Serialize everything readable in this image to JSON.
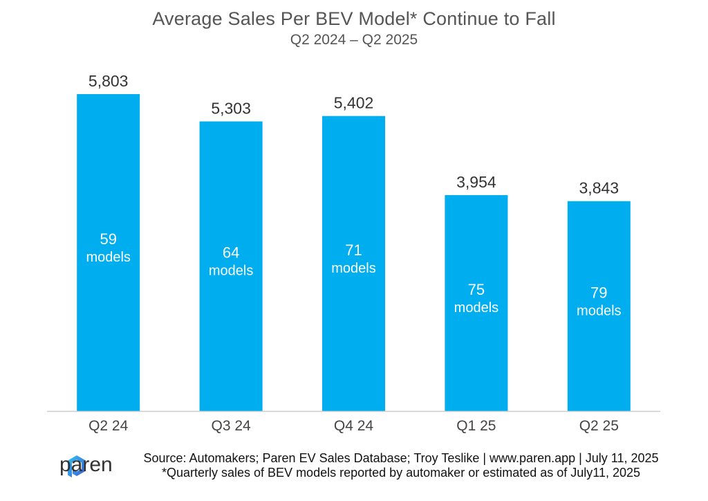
{
  "title": "Average Sales Per BEV Model* Continue to Fall",
  "subtitle": "Q2 2024 – Q2 2025",
  "chart_data": {
    "type": "bar",
    "categories": [
      "Q2 24",
      "Q3 24",
      "Q4 24",
      "Q1 25",
      "Q2 25"
    ],
    "values": [
      5803,
      5303,
      5402,
      3954,
      3843
    ],
    "value_labels": [
      "5,803",
      "5,303",
      "5,402",
      "3,954",
      "3,843"
    ],
    "model_counts": [
      "59",
      "64",
      "71",
      "75",
      "79"
    ],
    "model_unit": "models",
    "ylim": [
      0,
      6500
    ],
    "grid": false,
    "bar_color": "#00AEEF"
  },
  "logo": {
    "text": "paren",
    "icon": "paren-logo-icon",
    "color": "#3A7BD5"
  },
  "source_line": "Source: Automakers; Paren EV Sales Database; Troy Teslike | www.paren.app | July 11, 2025",
  "footnote": "*Quarterly sales of BEV models reported by automaker or estimated as of July11, 2025"
}
